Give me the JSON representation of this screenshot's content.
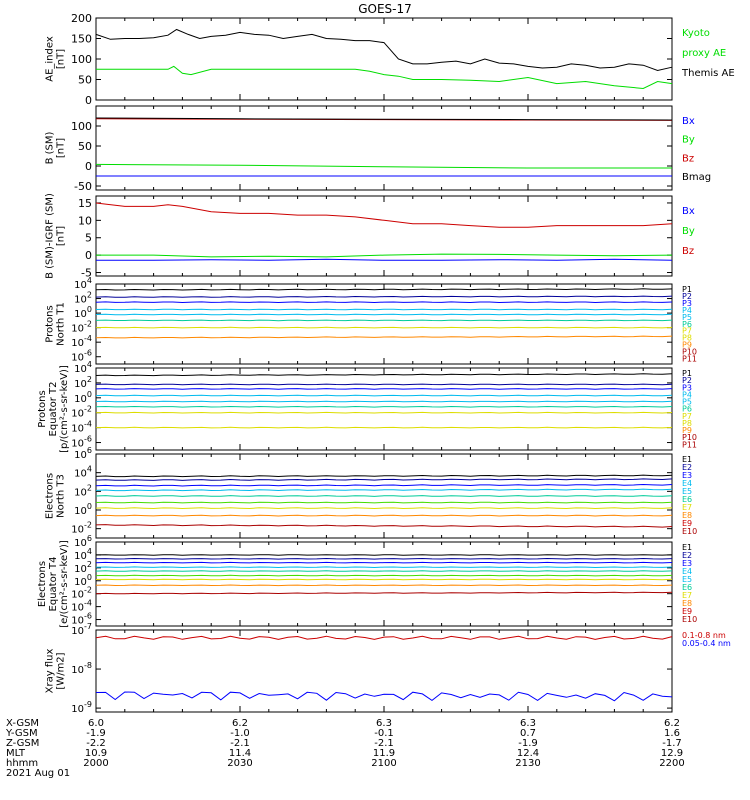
{
  "title": "GOES-17",
  "colors": {
    "black": "#000000",
    "green": "#00dd00",
    "blue": "#0000ff",
    "red": "#cc0000",
    "navy": "#000099",
    "cyan": "#00bbee",
    "teal": "#00cc99",
    "lime": "#44dd00",
    "yellow": "#dddd00",
    "orange": "#ff8800",
    "darkred": "#aa0000"
  },
  "chart_data": [
    {
      "type": "line",
      "id": "ae",
      "ylabel": [
        "AE_index",
        "[nT]"
      ],
      "ylim": [
        0,
        200
      ],
      "yticks": [
        "0",
        "50",
        "100",
        "150",
        "200"
      ],
      "legend": [
        {
          "name": "Kyoto",
          "color": "green"
        },
        {
          "name": "proxy AE",
          "color": "green"
        },
        {
          "name": "Themis AE",
          "color": "black"
        }
      ],
      "series": [
        {
          "name": "Themis AE",
          "color": "black",
          "x": [
            2000,
            2005,
            2010,
            2015,
            2020,
            2025,
            2028,
            2032,
            2036,
            2040,
            2045,
            2050,
            2055,
            2060,
            2065,
            2070,
            2075,
            2080,
            2085,
            2090,
            2095,
            2100,
            2105,
            2110,
            2115,
            2120,
            2125,
            2130,
            2135,
            2140,
            2145,
            2150,
            2155,
            2160,
            2165,
            2170,
            2175,
            2180,
            2185,
            2190,
            2195,
            2200
          ],
          "values": [
            160,
            148,
            150,
            150,
            152,
            158,
            172,
            160,
            150,
            155,
            158,
            165,
            160,
            158,
            150,
            155,
            160,
            150,
            148,
            145,
            145,
            140,
            100,
            88,
            88,
            92,
            95,
            88,
            100,
            90,
            88,
            82,
            78,
            80,
            88,
            85,
            78,
            80,
            88,
            85,
            72,
            80
          ]
        },
        {
          "name": "Kyoto proxy AE",
          "color": "green",
          "x": [
            2000,
            2010,
            2020,
            2025,
            2027,
            2030,
            2033,
            2040,
            2050,
            2060,
            2070,
            2080,
            2090,
            2095,
            2100,
            2105,
            2110,
            2120,
            2130,
            2140,
            2150,
            2160,
            2170,
            2180,
            2190,
            2195,
            2200
          ],
          "values": [
            75,
            75,
            75,
            75,
            82,
            65,
            62,
            75,
            75,
            75,
            75,
            75,
            75,
            70,
            62,
            58,
            50,
            50,
            48,
            45,
            55,
            40,
            45,
            35,
            28,
            45,
            40
          ]
        }
      ]
    },
    {
      "type": "line",
      "id": "bsm",
      "ylabel": [
        "B (SM)",
        "[nT]"
      ],
      "ylim": [
        -60,
        150
      ],
      "yticks": [
        "-50",
        "0",
        "50",
        "100"
      ],
      "legend": [
        {
          "name": "Bx",
          "color": "blue"
        },
        {
          "name": "By",
          "color": "green"
        },
        {
          "name": "Bz",
          "color": "red"
        },
        {
          "name": "Bmag",
          "color": "black"
        }
      ],
      "series": [
        {
          "name": "Bz",
          "color": "red",
          "x": [
            2000,
            2050,
            2100,
            2150,
            2200
          ],
          "values": [
            118,
            117,
            116,
            115,
            114
          ]
        },
        {
          "name": "Bmag",
          "color": "black",
          "x": [
            2000,
            2050,
            2100,
            2150,
            2200
          ],
          "values": [
            120,
            118,
            117,
            116,
            115
          ]
        },
        {
          "name": "By",
          "color": "green",
          "x": [
            2000,
            2050,
            2100,
            2150,
            2200
          ],
          "values": [
            4,
            2,
            -2,
            -5,
            -5
          ]
        },
        {
          "name": "Bx",
          "color": "blue",
          "x": [
            2000,
            2050,
            2100,
            2150,
            2200
          ],
          "values": [
            -25,
            -25,
            -25,
            -25,
            -25
          ]
        }
      ]
    },
    {
      "type": "line",
      "id": "bigrf",
      "ylabel": [
        "B (SM)-IGRF (SM)",
        "[nT]"
      ],
      "ylim": [
        -6,
        17
      ],
      "yticks": [
        "-5",
        "0",
        "5",
        "10",
        "15"
      ],
      "legend": [
        {
          "name": "Bx",
          "color": "blue"
        },
        {
          "name": "By",
          "color": "green"
        },
        {
          "name": "Bz",
          "color": "red"
        }
      ],
      "series": [
        {
          "name": "Bz",
          "color": "red",
          "x": [
            2000,
            2010,
            2020,
            2025,
            2030,
            2040,
            2050,
            2060,
            2070,
            2080,
            2090,
            2100,
            2110,
            2120,
            2130,
            2140,
            2150,
            2160,
            2170,
            2180,
            2190,
            2200
          ],
          "values": [
            15,
            14,
            14,
            14.5,
            14,
            12.5,
            12,
            12,
            11.5,
            11.5,
            11,
            10,
            9,
            9,
            8.5,
            8,
            8,
            8.5,
            8.5,
            8.5,
            8.5,
            9
          ]
        },
        {
          "name": "By",
          "color": "green",
          "x": [
            2000,
            2020,
            2040,
            2060,
            2080,
            2100,
            2120,
            2140,
            2160,
            2180,
            2200
          ],
          "values": [
            0,
            0,
            -0.5,
            -0.3,
            -0.5,
            0,
            0.3,
            0.2,
            0,
            -0.2,
            0
          ]
        },
        {
          "name": "Bx",
          "color": "blue",
          "x": [
            2000,
            2020,
            2040,
            2060,
            2080,
            2100,
            2120,
            2140,
            2160,
            2180,
            2200
          ],
          "values": [
            -1.5,
            -1.5,
            -1.3,
            -1.5,
            -1.2,
            -1.5,
            -1.5,
            -1.3,
            -1.5,
            -1.2,
            -1.5
          ]
        }
      ]
    },
    {
      "type": "line",
      "id": "protons-t1",
      "log": true,
      "ylabel": [
        "Protons",
        "North T1"
      ],
      "ylim_exp": [
        -7,
        4
      ],
      "yticks": [
        "10^-6",
        "10^-4",
        "10^-2",
        "10^0",
        "10^2",
        "10^4"
      ],
      "legend": [
        {
          "name": "P1",
          "color": "black"
        },
        {
          "name": "P2",
          "color": "navy"
        },
        {
          "name": "P3",
          "color": "blue"
        },
        {
          "name": "P4",
          "color": "cyan"
        },
        {
          "name": "P5",
          "color": "cyan"
        },
        {
          "name": "P6",
          "color": "teal"
        },
        {
          "name": "P7",
          "color": "yellow"
        },
        {
          "name": "P8",
          "color": "yellow"
        },
        {
          "name": "P9",
          "color": "orange"
        },
        {
          "name": "P10",
          "color": "darkred"
        },
        {
          "name": "P11",
          "color": "darkred"
        }
      ],
      "series": [
        {
          "name": "P1",
          "color": "black",
          "values": [
            3.2,
            3.3
          ]
        },
        {
          "name": "P2",
          "color": "navy",
          "values": [
            2.2,
            2.3
          ]
        },
        {
          "name": "P3",
          "color": "blue",
          "values": [
            1.5,
            1.5
          ]
        },
        {
          "name": "P4",
          "color": "cyan",
          "values": [
            0.5,
            0.5
          ]
        },
        {
          "name": "P5",
          "color": "cyan",
          "values": [
            -0.2,
            -0.2
          ]
        },
        {
          "name": "P6",
          "color": "teal",
          "values": [
            -1.0,
            -1.0
          ]
        },
        {
          "name": "P7",
          "color": "yellow",
          "values": [
            -2.0,
            -2.0
          ]
        },
        {
          "name": "P9",
          "color": "orange",
          "values": [
            -3.4,
            -3.2
          ]
        }
      ]
    },
    {
      "type": "line",
      "id": "protons-t2",
      "log": true,
      "ylabel": [
        "Protons",
        "Equator T2",
        "[p/(cm²-s-sr-keV)]"
      ],
      "ylim_exp": [
        -7,
        4
      ],
      "yticks": [
        "10^-6",
        "10^-4",
        "10^-2",
        "10^0",
        "10^2",
        "10^4"
      ],
      "legend": [
        {
          "name": "P1",
          "color": "black"
        },
        {
          "name": "P2",
          "color": "navy"
        },
        {
          "name": "P3",
          "color": "blue"
        },
        {
          "name": "P4",
          "color": "cyan"
        },
        {
          "name": "P5",
          "color": "cyan"
        },
        {
          "name": "P6",
          "color": "teal"
        },
        {
          "name": "P7",
          "color": "yellow"
        },
        {
          "name": "P8",
          "color": "yellow"
        },
        {
          "name": "P9",
          "color": "orange"
        },
        {
          "name": "P10",
          "color": "darkred"
        },
        {
          "name": "P11",
          "color": "darkred"
        }
      ],
      "series": [
        {
          "name": "P1",
          "color": "black",
          "values": [
            3.0,
            3.2
          ]
        },
        {
          "name": "P2",
          "color": "navy",
          "values": [
            1.8,
            1.8
          ]
        },
        {
          "name": "P3",
          "color": "blue",
          "values": [
            1.2,
            1.2
          ]
        },
        {
          "name": "P4",
          "color": "cyan",
          "values": [
            0.3,
            0.3
          ]
        },
        {
          "name": "P5",
          "color": "cyan",
          "values": [
            -0.5,
            -0.5
          ]
        },
        {
          "name": "P6",
          "color": "teal",
          "values": [
            -1.2,
            -1.2
          ]
        },
        {
          "name": "P7",
          "color": "yellow",
          "values": [
            -2.0,
            -2.0
          ]
        },
        {
          "name": "P9",
          "color": "yellow",
          "values": [
            -4.0,
            -4.0
          ]
        }
      ]
    },
    {
      "type": "line",
      "id": "electrons-t3",
      "log": true,
      "ylabel": [
        "Electrons",
        "North T3"
      ],
      "ylim_exp": [
        -3,
        6
      ],
      "yticks": [
        "10^-2",
        "10^0",
        "10^2",
        "10^4",
        "10^6"
      ],
      "legend": [
        {
          "name": "E1",
          "color": "black"
        },
        {
          "name": "E2",
          "color": "navy"
        },
        {
          "name": "E3",
          "color": "blue"
        },
        {
          "name": "E4",
          "color": "cyan"
        },
        {
          "name": "E5",
          "color": "cyan"
        },
        {
          "name": "E6",
          "color": "teal"
        },
        {
          "name": "E7",
          "color": "yellow"
        },
        {
          "name": "E8",
          "color": "orange"
        },
        {
          "name": "E9",
          "color": "red"
        },
        {
          "name": "E10",
          "color": "darkred"
        }
      ],
      "series": [
        {
          "name": "E1",
          "color": "black",
          "values": [
            3.6,
            3.7
          ]
        },
        {
          "name": "E2",
          "color": "navy",
          "values": [
            3.2,
            3.3
          ]
        },
        {
          "name": "E3",
          "color": "blue",
          "values": [
            2.6,
            2.7
          ]
        },
        {
          "name": "E4",
          "color": "cyan",
          "values": [
            2.1,
            2.2
          ]
        },
        {
          "name": "E5",
          "color": "teal",
          "values": [
            1.5,
            1.5
          ]
        },
        {
          "name": "E6",
          "color": "lime",
          "values": [
            0.8,
            0.8
          ]
        },
        {
          "name": "E7",
          "color": "yellow",
          "values": [
            0.2,
            0.2
          ]
        },
        {
          "name": "E8",
          "color": "orange",
          "values": [
            -0.6,
            -0.6
          ]
        },
        {
          "name": "E10",
          "color": "darkred",
          "values": [
            -1.6,
            -1.8
          ]
        }
      ]
    },
    {
      "type": "line",
      "id": "electrons-t4",
      "log": true,
      "ylabel": [
        "Electrons",
        "Equator T4",
        "[e/(cm²-s-sr-keV)]"
      ],
      "ylim_exp": [
        -7,
        6
      ],
      "yticks": [
        "10^-6",
        "10^-4",
        "10^-2",
        "10^0",
        "10^2",
        "10^4",
        "10^6"
      ],
      "legend": [
        {
          "name": "E1",
          "color": "black"
        },
        {
          "name": "E2",
          "color": "navy"
        },
        {
          "name": "E3",
          "color": "blue"
        },
        {
          "name": "E4",
          "color": "cyan"
        },
        {
          "name": "E5",
          "color": "cyan"
        },
        {
          "name": "E6",
          "color": "teal"
        },
        {
          "name": "E7",
          "color": "yellow"
        },
        {
          "name": "E8",
          "color": "orange"
        },
        {
          "name": "E9",
          "color": "red"
        },
        {
          "name": "E10",
          "color": "darkred"
        }
      ],
      "series": [
        {
          "name": "E1",
          "color": "black",
          "values": [
            4.0,
            4.0
          ]
        },
        {
          "name": "E2",
          "color": "navy",
          "values": [
            3.4,
            3.4
          ]
        },
        {
          "name": "E3",
          "color": "blue",
          "values": [
            2.8,
            2.8
          ]
        },
        {
          "name": "E4",
          "color": "cyan",
          "values": [
            2.1,
            2.1
          ]
        },
        {
          "name": "E5",
          "color": "teal",
          "values": [
            1.5,
            1.5
          ]
        },
        {
          "name": "E6",
          "color": "lime",
          "values": [
            0.8,
            0.8
          ]
        },
        {
          "name": "E7",
          "color": "yellow",
          "values": [
            0.2,
            0.2
          ]
        },
        {
          "name": "E8",
          "color": "orange",
          "values": [
            -0.7,
            -0.7
          ]
        },
        {
          "name": "E10",
          "color": "darkred",
          "values": [
            -2.0,
            -1.8
          ]
        }
      ]
    },
    {
      "type": "line",
      "id": "xray",
      "log": true,
      "ylabel": [
        "Xray flux",
        "[W/m2]"
      ],
      "ylim_exp": [
        -9.1,
        -7
      ],
      "yticks": [
        "10^-9",
        "10^-8",
        "10^-7"
      ],
      "legend": [
        {
          "name": "0.1-0.8 nm",
          "color": "red"
        },
        {
          "name": "0.05-0.4 nm",
          "color": "blue"
        }
      ],
      "series": [
        {
          "name": "0.1-0.8 nm",
          "color": "red",
          "values": [
            -7.2,
            -7.2
          ]
        },
        {
          "name": "0.05-0.4 nm",
          "color": "blue",
          "values": [
            -8.65,
            -8.7
          ]
        }
      ]
    }
  ],
  "xaxis": {
    "rows": [
      {
        "label": "X-GSM",
        "values": [
          "6.0",
          "6.2",
          "6.3",
          "6.3",
          "6.2"
        ]
      },
      {
        "label": "Y-GSM",
        "values": [
          "-1.9",
          "-1.0",
          "-0.1",
          "0.7",
          "1.6"
        ]
      },
      {
        "label": "Z-GSM",
        "values": [
          "-2.2",
          "-2.1",
          "-2.1",
          "-1.9",
          "-1.7"
        ]
      },
      {
        "label": "MLT",
        "values": [
          "10.9",
          "11.4",
          "11.9",
          "12.4",
          "12.9"
        ]
      },
      {
        "label": "hhmm",
        "values": [
          "2000",
          "2030",
          "2100",
          "2130",
          "2200"
        ]
      }
    ],
    "date": "2021 Aug 01"
  }
}
